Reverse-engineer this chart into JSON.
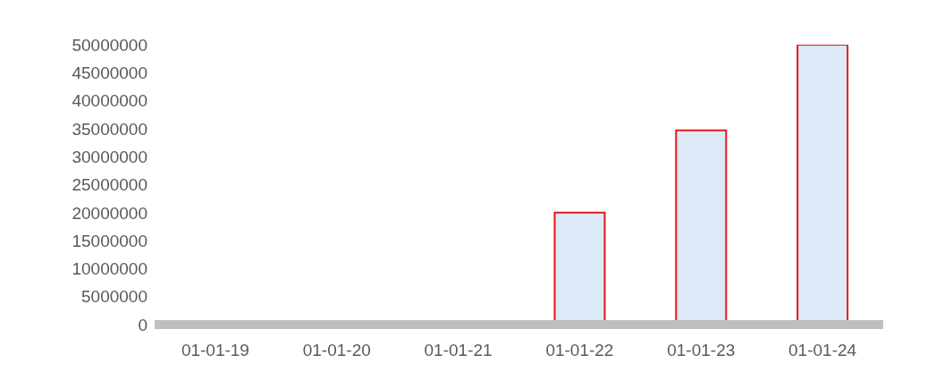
{
  "chart_data": {
    "type": "bar",
    "categories": [
      "01-01-19",
      "01-01-20",
      "01-01-21",
      "01-01-22",
      "01-01-23",
      "01-01-24"
    ],
    "values": [
      0,
      0,
      0,
      20000000,
      34700000,
      50000000
    ],
    "color": "#dce9f7",
    "ylim": [
      0,
      50000000
    ],
    "yticks": [
      0,
      5000000,
      10000000,
      15000000,
      20000000,
      25000000,
      30000000,
      35000000,
      40000000,
      45000000,
      50000000
    ],
    "grid": false
  }
}
